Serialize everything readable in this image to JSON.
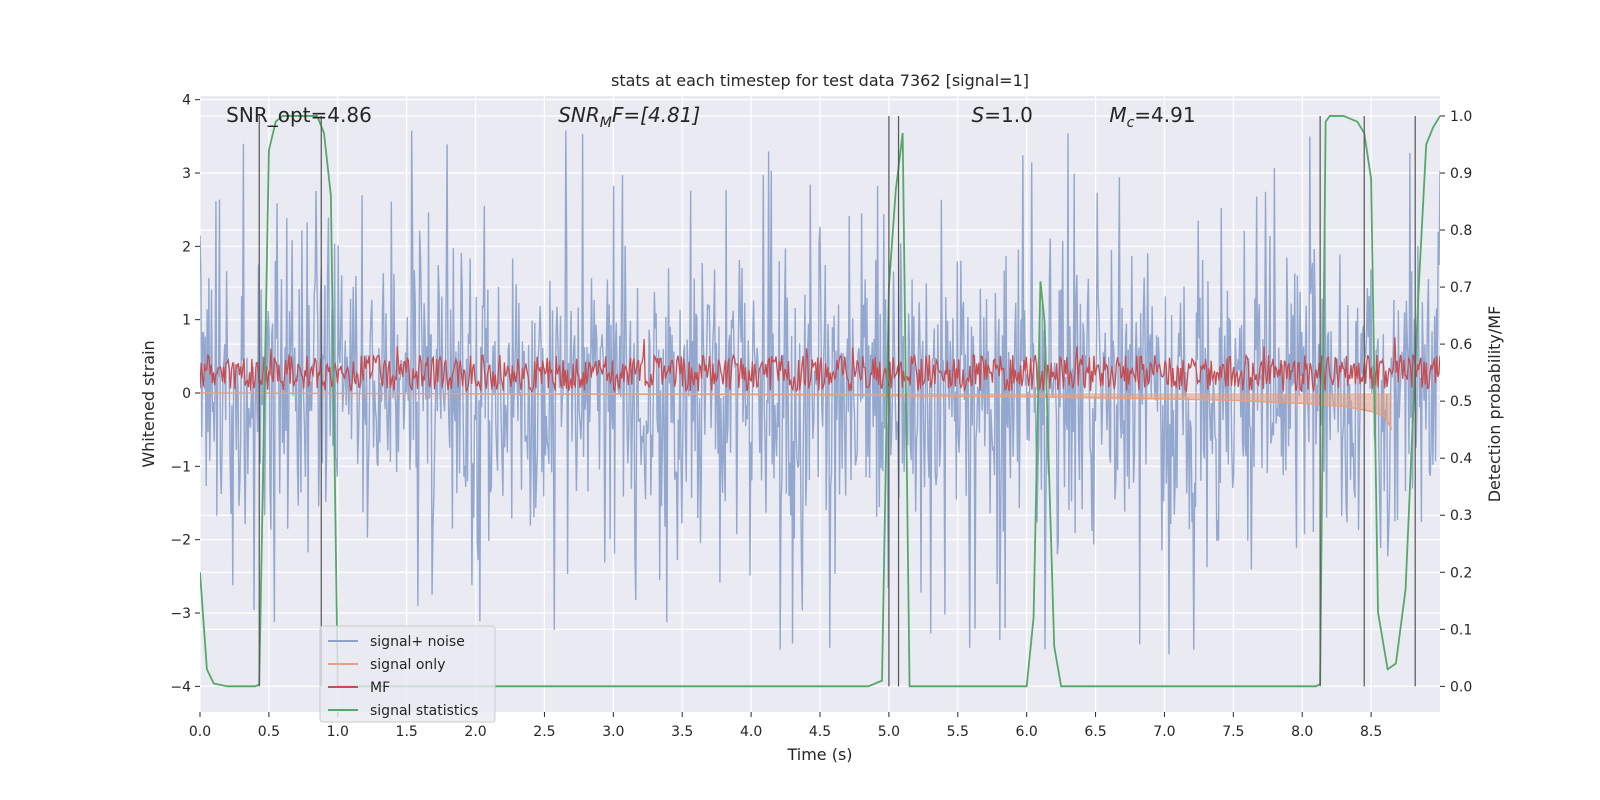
{
  "chart_data": {
    "type": "line",
    "title": "stats at each timestep for test data 7362 [signal=1]",
    "xlabel": "Time (s)",
    "ylabel_left": "Whitened strain",
    "ylabel_right": "Detection probability/MF",
    "xlim": [
      0,
      9.0
    ],
    "ylim_left": [
      -4.35,
      4.05
    ],
    "ylim_right": [
      -0.045,
      1.035
    ],
    "xticks": [
      "0.0",
      "0.5",
      "1.0",
      "1.5",
      "2.0",
      "2.5",
      "3.0",
      "3.5",
      "4.0",
      "4.5",
      "5.0",
      "5.5",
      "6.0",
      "6.5",
      "7.0",
      "7.5",
      "8.0",
      "8.5"
    ],
    "yticks_left": [
      "−4",
      "−3",
      "−2",
      "−1",
      "0",
      "1",
      "2",
      "3",
      "4"
    ],
    "yticks_right": [
      "0.0",
      "0.1",
      "0.2",
      "0.3",
      "0.4",
      "0.5",
      "0.6",
      "0.7",
      "0.8",
      "0.9",
      "1.0"
    ],
    "grid": true,
    "legend_position": "lower-left",
    "annotations": [
      {
        "id": "snr-opt",
        "text": "SNR_opt=4.86",
        "x": 0.19
      },
      {
        "id": "snr-mf",
        "text": "SNR",
        "sub": "M",
        "rest": "F=[4.81]",
        "x": 2.6
      },
      {
        "id": "s-value",
        "text": "S",
        "rest": "=1.0",
        "x": 5.6
      },
      {
        "id": "mc-value",
        "text": "M",
        "sub": "c",
        "rest": "=4.91",
        "x": 6.6
      }
    ],
    "series": [
      {
        "name": "signal+ noise",
        "color": "#8ea3cc",
        "band": {
          "x": [
            0,
            9.0
          ],
          "typical_abs": 1.4,
          "max_abs": 3.6
        }
      },
      {
        "name": "signal only",
        "color": "#e8a080",
        "x": [
          0,
          2,
          4,
          6,
          7,
          7.5,
          8.0,
          8.3,
          8.5,
          8.6,
          8.65
        ],
        "y": [
          -0.0,
          -0.01,
          -0.02,
          -0.05,
          -0.08,
          -0.1,
          -0.14,
          -0.18,
          -0.25,
          -0.32,
          -0.5
        ]
      },
      {
        "name": "MF",
        "color": "#c44e52",
        "band": {
          "x": [
            0,
            9.0
          ],
          "mean": 0.27,
          "half_width": 0.25
        }
      },
      {
        "name": "signal statistics",
        "color": "#55a868",
        "x": [
          0.0,
          0.05,
          0.1,
          0.2,
          0.3,
          0.4,
          0.43,
          0.5,
          0.55,
          0.6,
          0.7,
          0.85,
          0.9,
          0.95,
          1.0,
          1.2,
          2.0,
          3.0,
          4.0,
          4.5,
          4.7,
          4.85,
          4.95,
          5.0,
          5.05,
          5.1,
          5.15,
          5.2,
          5.5,
          5.8,
          6.0,
          6.05,
          6.1,
          6.13,
          6.2,
          6.25,
          6.3,
          7.0,
          7.5,
          8.0,
          8.1,
          8.13,
          8.17,
          8.2,
          8.25,
          8.3,
          8.4,
          8.45,
          8.5,
          8.55,
          8.62,
          8.68,
          8.75,
          8.8,
          8.85,
          8.9,
          8.95,
          9.0
        ],
        "y": [
          0.2,
          0.03,
          0.005,
          0.0,
          0.0,
          0.0,
          0.003,
          0.94,
          0.99,
          1.0,
          1.0,
          1.0,
          0.97,
          0.86,
          0.0,
          0.0,
          0.0,
          0.0,
          0.0,
          0.0,
          0.0,
          0.0,
          0.01,
          0.7,
          0.87,
          0.97,
          0.0,
          0.0,
          0.0,
          0.0,
          0.0,
          0.12,
          0.71,
          0.64,
          0.07,
          0.0,
          0.0,
          0.0,
          0.0,
          0.0,
          0.0,
          0.004,
          0.99,
          1.0,
          1.0,
          1.0,
          0.99,
          0.97,
          0.89,
          0.13,
          0.03,
          0.04,
          0.17,
          0.45,
          0.72,
          0.95,
          0.98,
          1.0
        ]
      }
    ],
    "vertical_lines_x": [
      0.43,
      0.88,
      5.0,
      5.07,
      8.13,
      8.45,
      8.82
    ]
  }
}
